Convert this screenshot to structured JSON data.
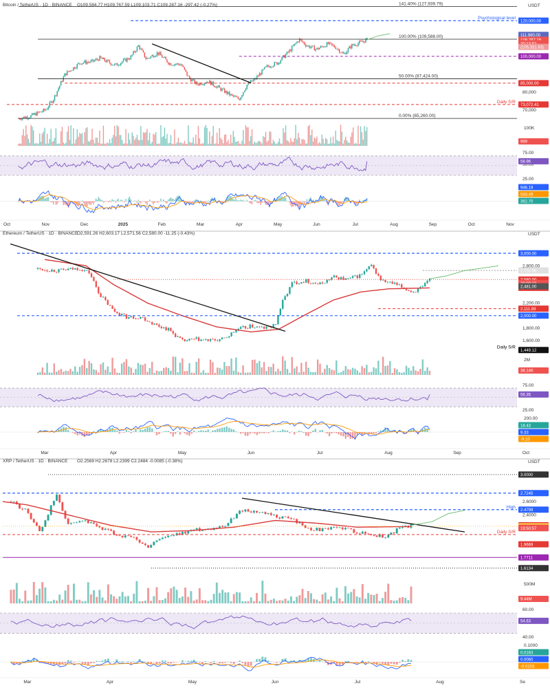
{
  "colors": {
    "up": "#26a69a",
    "down": "#ef5350",
    "sma": "#d93a3a",
    "rsi": "#7e57c2",
    "rsi_band": "#ede7f6",
    "macd": "#2962ff",
    "signal": "#ff9800",
    "level_blue": "#2962ff",
    "level_red": "#e53935",
    "level_black": "#222222",
    "level_purple": "#9c27b0",
    "text": "#333333",
    "projection": "#66bb6a"
  },
  "chart_data": [
    {
      "type": "candlestick",
      "title": "Bitcoin / TetherUS · 1D · BINANCE",
      "ohlc": {
        "O": "109,584.77",
        "H": "109,767.59",
        "L": "109,103.71",
        "C": "109,287.16",
        "change": "-297.42 (-0.27%)"
      },
      "currency": "USDT",
      "ylim": [
        63000,
        130000
      ],
      "y_ticks": [
        {
          "v": 80000,
          "label": "80,000"
        },
        {
          "v": 70000,
          "label": "70,000"
        }
      ],
      "x_ticks": [
        "Oct",
        "Nov",
        "Dec",
        "2025",
        "Feb",
        "Mar",
        "Apr",
        "May",
        "Jun",
        "Jul",
        "Aug",
        "Sep",
        "Oct",
        "Nov"
      ],
      "x_months": 14,
      "data_end": 9.3,
      "anchors": [
        [
          0.3,
          65260
        ],
        [
          0.6,
          66500
        ],
        [
          1.0,
          70000
        ],
        [
          1.2,
          76000
        ],
        [
          1.5,
          90000
        ],
        [
          1.9,
          96500
        ],
        [
          2.2,
          97000
        ],
        [
          2.4,
          99000
        ],
        [
          2.8,
          95000
        ],
        [
          3.2,
          99500
        ],
        [
          3.4,
          106000
        ],
        [
          3.6,
          98500
        ],
        [
          3.9,
          102000
        ],
        [
          4.2,
          96000
        ],
        [
          4.5,
          95500
        ],
        [
          4.7,
          88000
        ],
        [
          4.9,
          84500
        ],
        [
          5.2,
          86000
        ],
        [
          5.5,
          82000
        ],
        [
          5.8,
          78000
        ],
        [
          6.0,
          76000
        ],
        [
          6.2,
          84000
        ],
        [
          6.4,
          87000
        ],
        [
          6.7,
          94000
        ],
        [
          7.0,
          96500
        ],
        [
          7.3,
          103000
        ],
        [
          7.55,
          109500
        ],
        [
          7.75,
          106000
        ],
        [
          8.0,
          104000
        ],
        [
          8.3,
          107000
        ],
        [
          8.5,
          105000
        ],
        [
          8.7,
          101000
        ],
        [
          8.9,
          106000
        ],
        [
          9.1,
          107500
        ],
        [
          9.3,
          109287
        ]
      ],
      "levels": [
        {
          "price": 127939.79,
          "label": "141.40% (127,939.79)",
          "style": "fib",
          "x0": 0.3
        },
        {
          "price": 120000,
          "label": "Psychological level",
          "style": "blue",
          "x0": 3.2,
          "tag": "120,000.00"
        },
        {
          "price": 109588,
          "label": "100.00% (109,588.00)",
          "style": "fib",
          "x0": 0.8
        },
        {
          "price": 100000,
          "label": "",
          "style": "purple",
          "x0": 6.0,
          "tag": "100,000.00"
        },
        {
          "price": 87424,
          "label": "50.00% (87,424.00)",
          "style": "fib",
          "x0": 0.8
        },
        {
          "price": 85000,
          "label": "",
          "style": "red",
          "x0": 1.5,
          "tag": "85,000.00"
        },
        {
          "price": 73072.41,
          "label": "Daily S/R",
          "style": "red",
          "x0": 0.0,
          "tag": "73,072.41"
        },
        {
          "price": 65260,
          "label": "0.00% (65,260.00)",
          "style": "fib",
          "x0": 0.3
        }
      ],
      "price_tags": [
        {
          "price": 111980,
          "label": "111,980.00",
          "color": "#5c6bc0"
        },
        {
          "price": 109287.16,
          "label": "109,287.16",
          "color": "#ef5350"
        },
        {
          "price": 107300,
          "label": "20:13:52",
          "color": "#ef5350"
        },
        {
          "price": 105331.93,
          "label": "(105,331.93)",
          "color": "#ef9a9a"
        }
      ],
      "trendline": [
        [
          3.75,
          107000
        ],
        [
          6.3,
          85200
        ]
      ],
      "projection": [
        [
          9.3,
          109300
        ],
        [
          9.6,
          111500
        ],
        [
          9.9,
          112700
        ]
      ],
      "volume": {
        "label": "100K",
        "tag": "969"
      },
      "rsi": {
        "ticks": [
          "75.00",
          "50.00",
          "25.00"
        ],
        "tag": "58.96",
        "last": 58.96
      },
      "macd": {
        "tags": [
          "946.19",
          "583.49",
          "362.70"
        ]
      }
    },
    {
      "type": "candlestick",
      "title": "Ethereum / TetherUS · 1D · BINANCE",
      "ohlc": {
        "O": "2,591.26",
        "H": "2,603.17",
        "L": "2,571.56",
        "C": "2,580.00",
        "change": "-11.25 (-0.43%)"
      },
      "currency": "USDT",
      "ylim": [
        1380,
        3200
      ],
      "y_ticks": [
        {
          "v": 3000,
          "label": "3,000.00"
        },
        {
          "v": 2800,
          "label": "2,800.00"
        },
        {
          "v": 2200,
          "label": "2,200.00"
        },
        {
          "v": 1800,
          "label": "1,800.00"
        },
        {
          "v": 1600,
          "label": "1,600.00"
        }
      ],
      "x_ticks": [
        "Mar",
        "Apr",
        "May",
        "Jun",
        "Jul",
        "Aug",
        "Sep",
        "Oct"
      ],
      "x_months": 8,
      "data_end": 5.6,
      "anchors": [
        [
          -0.1,
          2750
        ],
        [
          0.2,
          2720
        ],
        [
          0.5,
          2760
        ],
        [
          0.65,
          2690
        ],
        [
          0.8,
          2340
        ],
        [
          1.0,
          2080
        ],
        [
          1.2,
          1970
        ],
        [
          1.4,
          1980
        ],
        [
          1.6,
          1860
        ],
        [
          1.8,
          1780
        ],
        [
          2.0,
          1590
        ],
        [
          2.2,
          1620
        ],
        [
          2.4,
          1600
        ],
        [
          2.6,
          1620
        ],
        [
          2.8,
          1780
        ],
        [
          3.0,
          1830
        ],
        [
          3.2,
          1800
        ],
        [
          3.35,
          1840
        ],
        [
          3.45,
          2200
        ],
        [
          3.6,
          2520
        ],
        [
          3.8,
          2560
        ],
        [
          4.0,
          2500
        ],
        [
          4.2,
          2620
        ],
        [
          4.4,
          2580
        ],
        [
          4.6,
          2650
        ],
        [
          4.75,
          2800
        ],
        [
          4.9,
          2560
        ],
        [
          5.1,
          2500
        ],
        [
          5.25,
          2430
        ],
        [
          5.35,
          2380
        ],
        [
          5.5,
          2450
        ],
        [
          5.6,
          2580
        ]
      ],
      "sma_anchors": [
        [
          0.0,
          2900
        ],
        [
          0.6,
          2800
        ],
        [
          1.0,
          2500
        ],
        [
          1.5,
          2200
        ],
        [
          2.0,
          2000
        ],
        [
          2.5,
          1820
        ],
        [
          3.0,
          1740
        ],
        [
          3.4,
          1780
        ],
        [
          3.8,
          2020
        ],
        [
          4.2,
          2250
        ],
        [
          4.6,
          2380
        ],
        [
          5.0,
          2430
        ],
        [
          5.6,
          2445
        ]
      ],
      "levels": [
        {
          "price": 3000,
          "label": "",
          "style": "blue",
          "x0": -0.4,
          "tag": "3,000.00"
        },
        {
          "price": 2724.96,
          "label": "",
          "style": "dotgray",
          "x0": 5.5,
          "tag": "2,724.96"
        },
        {
          "price": 2580,
          "label": "",
          "style": "dotred",
          "x0": 1.0,
          "tag": "2,580.00"
        },
        {
          "price": 2445.69,
          "label": "",
          "style": "none",
          "x0": 5.6,
          "tag": "2,445.69"
        },
        {
          "price": 2111.89,
          "label": "",
          "style": "red",
          "x0": 4.85,
          "tag": "2,111.89"
        },
        {
          "price": 2000,
          "label": "",
          "style": "blue",
          "x0": -0.4,
          "tag": "2,000.00"
        },
        {
          "price": 1449.12,
          "label": "Daily S/R",
          "style": "none",
          "x0": 5.6,
          "tag": "1,449.12"
        }
      ],
      "price_tags": [
        {
          "price": 2520,
          "label": "20:09:19",
          "color": "#ef5350"
        },
        {
          "price": 2470,
          "label": "2,481.00",
          "color": "#555555"
        }
      ],
      "trendline": [
        [
          -0.5,
          3150
        ],
        [
          3.5,
          1750
        ]
      ],
      "projection": [
        [
          5.6,
          2590
        ],
        [
          5.85,
          2640
        ],
        [
          6.1,
          2720
        ],
        [
          6.35,
          2760
        ],
        [
          6.6,
          2800
        ]
      ],
      "volume": {
        "label": "2M",
        "tag": "38.14K"
      },
      "rsi": {
        "ticks": [
          "75.00",
          "56.35",
          "25.00"
        ],
        "tag": "56.35",
        "last": 56.35
      },
      "macd": {
        "tags": [
          "200.00",
          "18.43",
          "9.33",
          "-9.10"
        ]
      }
    },
    {
      "type": "candlestick",
      "title": "XRP / TetherUS · 1D · BINANCE",
      "ohlc": {
        "O": "2.2569",
        "H": "2.2678",
        "L": "2.2399",
        "C": "2.2484",
        "change": "-0.0085 (-0.38%)"
      },
      "currency": "USDT",
      "ylim": [
        1.57,
        3.12
      ],
      "y_ticks": [
        {
          "v": 2.6,
          "label": "2.6000"
        },
        {
          "v": 2.4,
          "label": "2.4000"
        }
      ],
      "x_ticks": [
        "Mar",
        "Apr",
        "May",
        "Jun",
        "Jul",
        "Aug",
        "Se"
      ],
      "x_months": 7,
      "data_end": 4.65,
      "anchors": [
        [
          -0.2,
          2.6
        ],
        [
          0.0,
          2.45
        ],
        [
          0.15,
          2.15
        ],
        [
          0.35,
          2.7
        ],
        [
          0.5,
          2.25
        ],
        [
          0.7,
          2.3
        ],
        [
          0.9,
          2.2
        ],
        [
          1.1,
          2.1
        ],
        [
          1.3,
          2.05
        ],
        [
          1.45,
          1.92
        ],
        [
          1.6,
          2.05
        ],
        [
          1.8,
          2.1
        ],
        [
          2.0,
          2.18
        ],
        [
          2.2,
          2.2
        ],
        [
          2.4,
          2.25
        ],
        [
          2.6,
          2.48
        ],
        [
          2.75,
          2.45
        ],
        [
          3.0,
          2.38
        ],
        [
          3.2,
          2.35
        ],
        [
          3.4,
          2.2
        ],
        [
          3.6,
          2.18
        ],
        [
          3.8,
          2.22
        ],
        [
          4.0,
          2.15
        ],
        [
          4.2,
          2.1
        ],
        [
          4.35,
          2.08
        ],
        [
          4.5,
          2.2
        ],
        [
          4.65,
          2.2484
        ]
      ],
      "sma_anchors": [
        [
          -0.3,
          2.6
        ],
        [
          0.0,
          2.55
        ],
        [
          0.5,
          2.4
        ],
        [
          1.0,
          2.25
        ],
        [
          1.5,
          2.15
        ],
        [
          2.0,
          2.17
        ],
        [
          2.5,
          2.22
        ],
        [
          3.0,
          2.32
        ],
        [
          3.5,
          2.28
        ],
        [
          4.0,
          2.22
        ],
        [
          4.65,
          2.23
        ]
      ],
      "levels": [
        {
          "price": 3.0,
          "label": "",
          "style": "dotblack",
          "x0": 0.25,
          "tag": "3.0000"
        },
        {
          "price": 2.7245,
          "label": "",
          "style": "blue",
          "x0": -0.3,
          "tag": "2.7245"
        },
        {
          "price": 2.4799,
          "label": "High",
          "style": "blue",
          "x0": 3.0,
          "tag": "2.4799"
        },
        {
          "price": 2.2484,
          "label": "",
          "style": "none",
          "x0": 4.65,
          "tag": "2.2484"
        },
        {
          "price": 2.233,
          "label": "",
          "style": "dotorange",
          "x0": -0.3,
          "tag": "2.2330"
        },
        {
          "price": 2.2111,
          "label": "",
          "style": "none",
          "x0": 4.65,
          "tag": "2.2111"
        },
        {
          "price": 2.11,
          "label": "Daily S/R",
          "style": "red",
          "x0": -0.3,
          "tag": ""
        },
        {
          "price": 1.9669,
          "label": "",
          "style": "none",
          "x0": 4.65,
          "tag": "1.9669"
        },
        {
          "price": 1.7711,
          "label": "",
          "style": "purple",
          "x0": -0.3,
          "tag": "1.7711"
        },
        {
          "price": 1.6134,
          "label": "",
          "style": "dotblack",
          "x0": 1.5,
          "tag": "1.6134"
        }
      ],
      "price_tags": [
        {
          "price": 2.205,
          "label": "19:50:57",
          "color": "#ef5350"
        }
      ],
      "trendline": [
        [
          2.6,
          2.65
        ],
        [
          5.3,
          2.15
        ]
      ],
      "projection": [
        [
          4.65,
          2.25
        ],
        [
          4.9,
          2.3
        ],
        [
          5.1,
          2.42
        ],
        [
          5.3,
          2.47
        ]
      ],
      "volume": {
        "label": "500M",
        "tag": "9.44M"
      },
      "rsi": {
        "ticks": [
          "60.00",
          "54.63",
          "40.00"
        ],
        "tag": "54.63",
        "last": 54.63
      },
      "macd": {
        "tags": [
          "0.1000",
          "0.0163",
          "0.0060",
          "-0.0103"
        ]
      }
    }
  ]
}
